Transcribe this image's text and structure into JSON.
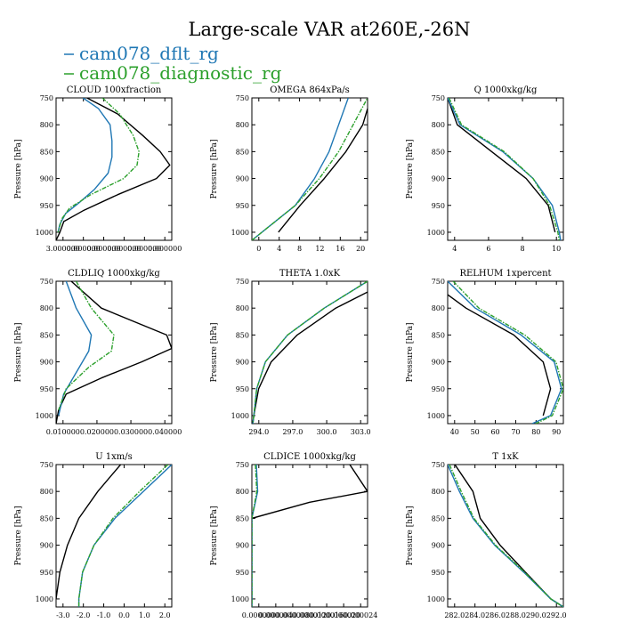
{
  "title": "Large-scale VAR at260E,-26N",
  "legend": [
    {
      "label": "cam078_dflt_rg",
      "color": "#1f77b4"
    },
    {
      "label": "cam078_diagnostic_rg",
      "color": "#2ca02c"
    }
  ],
  "chart_data": [
    {
      "type": "line",
      "title": "CLOUD 100xfraction",
      "ylabel": "Pressure [hPa]",
      "xlim": [
        0.0,
        0.6
      ],
      "ylim": [
        1015,
        750
      ],
      "y_ticks": [
        750,
        800,
        850,
        900,
        950,
        1000
      ],
      "x_tick_labels": [
        "3.000000",
        "0.000000",
        "0.000000",
        "0.000000",
        "0.000000",
        "0.000000"
      ],
      "series": [
        {
          "name": "black",
          "color": "#000000",
          "p": [
            750,
            780,
            820,
            850,
            875,
            900,
            930,
            960,
            980,
            1000,
            1015
          ],
          "x": [
            0.16,
            0.32,
            0.45,
            0.54,
            0.59,
            0.52,
            0.32,
            0.14,
            0.04,
            0.02,
            0.0
          ]
        },
        {
          "name": "cam078_dflt_rg",
          "color": "#1f77b4",
          "p": [
            750,
            770,
            800,
            830,
            860,
            890,
            920,
            945,
            965,
            985,
            1000
          ],
          "x": [
            0.14,
            0.22,
            0.28,
            0.29,
            0.29,
            0.27,
            0.2,
            0.12,
            0.05,
            0.02,
            0.01
          ]
        },
        {
          "name": "cam078_diagnostic_rg",
          "color": "#2ca02c",
          "dashed": true,
          "p": [
            750,
            780,
            820,
            850,
            875,
            900,
            930,
            955,
            975,
            1000
          ],
          "x": [
            0.24,
            0.33,
            0.4,
            0.43,
            0.42,
            0.35,
            0.18,
            0.07,
            0.03,
            0.01
          ]
        }
      ]
    },
    {
      "type": "line",
      "title": "OMEGA 864xPa/s",
      "ylabel": "Pressure [hPa]",
      "xlim": [
        -2,
        22
      ],
      "ylim": [
        1015,
        750
      ],
      "y_ticks": [
        750,
        800,
        850,
        900,
        950,
        1000
      ],
      "x_tick_labels": [
        "0",
        "4",
        "8",
        "12",
        "16",
        "20"
      ],
      "series": [
        {
          "name": "black",
          "color": "#000000",
          "p": [
            1000,
            950,
            900,
            850,
            800,
            770
          ],
          "x": [
            3.5,
            8,
            13,
            17.5,
            21,
            22
          ]
        },
        {
          "name": "cam078_dflt_rg",
          "color": "#1f77b4",
          "p": [
            1015,
            950,
            900,
            850,
            800,
            750
          ],
          "x": [
            -2,
            7,
            11,
            14,
            16,
            18
          ]
        },
        {
          "name": "cam078_diagnostic_rg",
          "color": "#2ca02c",
          "dashed": true,
          "p": [
            1015,
            950,
            900,
            850,
            800,
            750
          ],
          "x": [
            -2,
            7,
            12,
            16,
            19,
            22
          ]
        }
      ]
    },
    {
      "type": "line",
      "title": "Q 1000xkg/kg",
      "ylabel": "Pressure [hPa]",
      "xlim": [
        2.8,
        11.2
      ],
      "ylim": [
        1015,
        750
      ],
      "y_ticks": [
        750,
        800,
        850,
        900,
        950,
        1000
      ],
      "x_tick_labels": [
        "4",
        "6",
        "8",
        "10"
      ],
      "series": [
        {
          "name": "black",
          "color": "#000000",
          "p": [
            750,
            800,
            850,
            900,
            950,
            1000
          ],
          "x": [
            2.8,
            3.5,
            6.0,
            8.5,
            10.1,
            10.6
          ]
        },
        {
          "name": "cam078_dflt_rg",
          "color": "#1f77b4",
          "p": [
            750,
            800,
            850,
            900,
            950,
            1000,
            1015
          ],
          "x": [
            2.8,
            3.7,
            6.8,
            9.0,
            10.4,
            10.9,
            11.0
          ]
        },
        {
          "name": "cam078_diagnostic_rg",
          "color": "#2ca02c",
          "dashed": true,
          "p": [
            750,
            800,
            850,
            900,
            950,
            1000,
            1015
          ],
          "x": [
            2.9,
            3.8,
            6.9,
            9.0,
            10.2,
            10.8,
            10.9
          ]
        }
      ]
    },
    {
      "type": "line",
      "title": "CLDLIQ 1000xkg/kg",
      "ylabel": "Pressure [hPa]",
      "xlim": [
        0.0,
        0.046
      ],
      "ylim": [
        1015,
        750
      ],
      "y_ticks": [
        750,
        800,
        850,
        900,
        950,
        1000
      ],
      "x_tick_labels": [
        "0.010000",
        "0.020000",
        "0.030000",
        "0.040000"
      ],
      "series": [
        {
          "name": "black",
          "color": "#000000",
          "p": [
            750,
            800,
            850,
            875,
            900,
            930,
            960,
            990,
            1015
          ],
          "x": [
            0.006,
            0.018,
            0.044,
            0.046,
            0.034,
            0.018,
            0.004,
            0.001,
            0.0
          ]
        },
        {
          "name": "cam078_dflt_rg",
          "color": "#1f77b4",
          "p": [
            750,
            800,
            850,
            880,
            920,
            960,
            1000
          ],
          "x": [
            0.004,
            0.008,
            0.014,
            0.013,
            0.008,
            0.003,
            0.001
          ]
        },
        {
          "name": "cam078_diagnostic_rg",
          "color": "#2ca02c",
          "dashed": true,
          "p": [
            750,
            800,
            850,
            880,
            910,
            950,
            990
          ],
          "x": [
            0.008,
            0.014,
            0.023,
            0.022,
            0.013,
            0.004,
            0.001
          ]
        }
      ]
    },
    {
      "type": "line",
      "title": "THETA 1.0xK",
      "ylabel": "Pressure [hPa]",
      "xlim": [
        292.8,
        304.8
      ],
      "ylim": [
        1015,
        750
      ],
      "y_ticks": [
        750,
        800,
        850,
        900,
        950,
        1000
      ],
      "x_tick_labels": [
        "294.0",
        "297.0",
        "300.0",
        "303.0"
      ],
      "series": [
        {
          "name": "black",
          "color": "#000000",
          "p": [
            770,
            800,
            850,
            900,
            950,
            1000,
            1015
          ],
          "x": [
            304.8,
            301.5,
            297.5,
            294.8,
            293.5,
            293.0,
            292.9
          ]
        },
        {
          "name": "cam078_dflt_rg",
          "color": "#1f77b4",
          "p": [
            750,
            800,
            850,
            900,
            950,
            1000,
            1015
          ],
          "x": [
            304.8,
            300.3,
            296.5,
            294.2,
            293.3,
            293.0,
            292.9
          ]
        },
        {
          "name": "cam078_diagnostic_rg",
          "color": "#2ca02c",
          "dashed": true,
          "p": [
            750,
            800,
            850,
            900,
            950,
            1000,
            1015
          ],
          "x": [
            304.8,
            300.3,
            296.5,
            294.2,
            293.3,
            293.0,
            292.9
          ]
        }
      ]
    },
    {
      "type": "line",
      "title": "RELHUM 1xpercent",
      "ylabel": "Pressure [hPa]",
      "xlim": [
        30,
        93
      ],
      "ylim": [
        1015,
        750
      ],
      "y_ticks": [
        750,
        800,
        850,
        900,
        950,
        1000
      ],
      "x_tick_labels": [
        "40",
        "50",
        "60",
        "70",
        "80",
        "90"
      ],
      "series": [
        {
          "name": "black",
          "color": "#000000",
          "p": [
            775,
            800,
            850,
            900,
            950,
            1000
          ],
          "x": [
            30,
            40,
            66,
            82,
            86,
            82
          ]
        },
        {
          "name": "cam078_dflt_rg",
          "color": "#1f77b4",
          "p": [
            750,
            800,
            850,
            900,
            950,
            1000,
            1015
          ],
          "x": [
            30,
            45,
            70,
            88,
            92,
            86,
            76
          ]
        },
        {
          "name": "cam078_diagnostic_rg",
          "color": "#2ca02c",
          "dashed": true,
          "p": [
            750,
            800,
            850,
            900,
            950,
            1000,
            1015
          ],
          "x": [
            33,
            47,
            72,
            89,
            93,
            87,
            78
          ]
        }
      ]
    },
    {
      "type": "line",
      "title": "U 1xm/s",
      "ylabel": "Pressure [hPa]",
      "xlim": [
        -3.4,
        2.7
      ],
      "ylim": [
        1015,
        750
      ],
      "y_ticks": [
        750,
        800,
        850,
        900,
        950,
        1000
      ],
      "x_tick_labels": [
        "-3.0",
        "-2.0",
        "-1.0",
        "0.0",
        "1.0",
        "2.0"
      ],
      "series": [
        {
          "name": "black",
          "color": "#000000",
          "p": [
            750,
            800,
            850,
            900,
            950,
            1000
          ],
          "x": [
            0.0,
            -1.2,
            -2.2,
            -2.8,
            -3.2,
            -3.4
          ]
        },
        {
          "name": "cam078_dflt_rg",
          "color": "#1f77b4",
          "p": [
            750,
            800,
            850,
            900,
            950,
            1000,
            1015
          ],
          "x": [
            2.7,
            1.2,
            -0.3,
            -1.4,
            -2.0,
            -2.2,
            -2.2
          ]
        },
        {
          "name": "cam078_diagnostic_rg",
          "color": "#2ca02c",
          "dashed": true,
          "p": [
            750,
            800,
            850,
            900,
            950,
            1000,
            1015
          ],
          "x": [
            2.5,
            1.0,
            -0.4,
            -1.4,
            -2.0,
            -2.2,
            -2.2
          ]
        }
      ]
    },
    {
      "type": "line",
      "title": "CLDICE 1000xkg/kg",
      "ylabel": "Pressure [hPa]",
      "xlim": [
        0.0,
        2.6e-05
      ],
      "ylim": [
        1015,
        750
      ],
      "y_ticks": [
        750,
        800,
        850,
        900,
        950,
        1000
      ],
      "x_tick_labels": [
        "0.000000",
        "0.000004",
        "0.000008",
        "0.000012",
        "0.000016",
        "0.000020",
        "0.000024"
      ],
      "series": [
        {
          "name": "black",
          "color": "#000000",
          "p": [
            750,
            800,
            820,
            850,
            1015
          ],
          "x": [
            2.2e-05,
            2.6e-05,
            1.3e-05,
            0.0,
            0.0
          ]
        },
        {
          "name": "cam078_dflt_rg",
          "color": "#1f77b4",
          "p": [
            750,
            800,
            850,
            1015
          ],
          "x": [
            1e-06,
            1.3e-06,
            0.0,
            0.0
          ]
        },
        {
          "name": "cam078_diagnostic_rg",
          "color": "#2ca02c",
          "dashed": true,
          "p": [
            750,
            800,
            850,
            1015
          ],
          "x": [
            8e-07,
            1.1e-06,
            0.0,
            0.0
          ]
        }
      ]
    },
    {
      "type": "line",
      "title": "T 1xK",
      "ylabel": "Pressure [hPa]",
      "xlim": [
        281.0,
        293.8
      ],
      "ylim": [
        1015,
        750
      ],
      "y_ticks": [
        750,
        800,
        850,
        900,
        950,
        1000
      ],
      "x_tick_labels": [
        "282.0",
        "284.0",
        "286.0",
        "288.0",
        "290.0",
        "292.0"
      ],
      "series": [
        {
          "name": "black",
          "color": "#000000",
          "p": [
            750,
            800,
            850,
            900,
            950,
            1000,
            1015
          ],
          "x": [
            281.8,
            283.8,
            284.6,
            286.8,
            289.6,
            292.4,
            293.8
          ]
        },
        {
          "name": "cam078_dflt_rg",
          "color": "#1f77b4",
          "p": [
            750,
            800,
            850,
            900,
            950,
            1000,
            1015
          ],
          "x": [
            281.0,
            282.3,
            283.8,
            286.2,
            289.4,
            292.4,
            293.8
          ]
        },
        {
          "name": "cam078_diagnostic_rg",
          "color": "#2ca02c",
          "dashed": true,
          "p": [
            750,
            800,
            850,
            900,
            950,
            1000,
            1015
          ],
          "x": [
            281.2,
            282.5,
            283.9,
            286.3,
            289.5,
            292.4,
            293.8
          ]
        }
      ]
    }
  ]
}
